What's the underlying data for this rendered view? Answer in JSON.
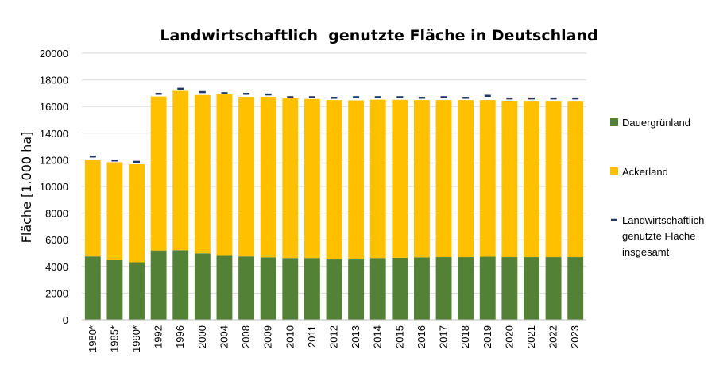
{
  "chart_data": {
    "type": "bar",
    "stacked": true,
    "title": "Landwirtschaftlich  genutzte Fläche in Deutschland",
    "ylabel": "Fläche [1.000 ha]",
    "ylim": [
      0,
      20000
    ],
    "yticks": [
      0,
      2000,
      4000,
      6000,
      8000,
      10000,
      12000,
      14000,
      16000,
      18000,
      20000
    ],
    "grid": true,
    "legend_position": "right",
    "categories": [
      "1980*",
      "1985*",
      "1990*",
      "1992",
      "1996",
      "2000",
      "2004",
      "2008",
      "2009",
      "2010",
      "2011",
      "2012",
      "2013",
      "2014",
      "2015",
      "2016",
      "2017",
      "2018",
      "2019",
      "2020",
      "2021",
      "2022",
      "2023"
    ],
    "series": [
      {
        "name": "Dauergrünland",
        "color": "#538135",
        "values": [
          4750,
          4500,
          4320,
          5200,
          5220,
          4980,
          4850,
          4750,
          4680,
          4630,
          4630,
          4580,
          4580,
          4630,
          4650,
          4680,
          4700,
          4700,
          4730,
          4700,
          4700,
          4700,
          4700
        ]
      },
      {
        "name": "Ackerland",
        "color": "#FFC000",
        "values": [
          7250,
          7320,
          7350,
          11550,
          11950,
          11880,
          12050,
          11970,
          12050,
          11970,
          11930,
          11900,
          11880,
          11880,
          11850,
          11800,
          11780,
          11780,
          11750,
          11730,
          11720,
          11720,
          11720
        ]
      },
      {
        "name": "Landwirtschaftlich genutzte Fläche insgesamt",
        "type": "marker",
        "color": "#1F3864",
        "values": [
          12250,
          11950,
          11850,
          16950,
          17330,
          17080,
          17000,
          16950,
          16900,
          16700,
          16700,
          16650,
          16700,
          16700,
          16700,
          16650,
          16700,
          16650,
          16800,
          16600,
          16600,
          16600,
          16600
        ]
      }
    ],
    "legend": [
      {
        "label": "Dauergrünland",
        "type": "box",
        "color": "#538135"
      },
      {
        "label": "Ackerland",
        "type": "box",
        "color": "#FFC000"
      },
      {
        "label_lines": [
          "Landwirtschaftlich",
          "genutzte Fläche",
          "insgesamt"
        ],
        "type": "dash",
        "color": "#1F3864"
      }
    ]
  }
}
